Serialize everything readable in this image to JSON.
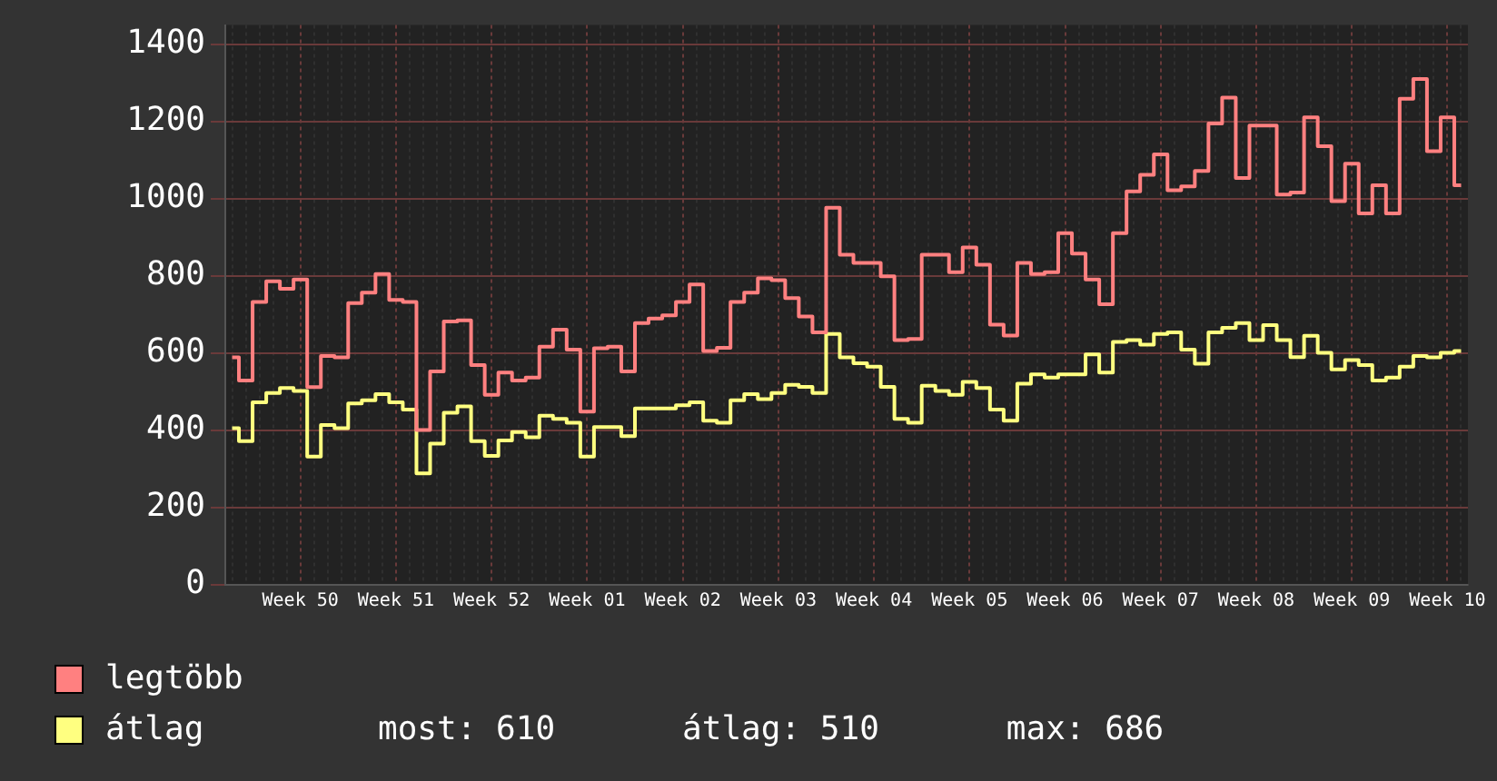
{
  "chart_data": {
    "type": "step",
    "categories": [
      null,
      null,
      null,
      null,
      null,
      "Week 50",
      null,
      null,
      null,
      null,
      null,
      null,
      "Week 51",
      null,
      null,
      null,
      null,
      null,
      null,
      "Week 52",
      null,
      null,
      null,
      null,
      null,
      null,
      "Week 01",
      null,
      null,
      null,
      null,
      null,
      null,
      "Week 02",
      null,
      null,
      null,
      null,
      null,
      null,
      "Week 03",
      null,
      null,
      null,
      null,
      null,
      null,
      "Week 04",
      null,
      null,
      null,
      null,
      null,
      null,
      "Week 05",
      null,
      null,
      null,
      null,
      null,
      null,
      "Week 06",
      null,
      null,
      null,
      null,
      null,
      null,
      "Week 07",
      null,
      null,
      null,
      null,
      null,
      null,
      "Week 08",
      null,
      null,
      null,
      null,
      null,
      null,
      "Week 09",
      null,
      null,
      null,
      null,
      null,
      null,
      "Week 10",
      null
    ],
    "series": [
      {
        "name": "legtöbb",
        "color": "#ff8080",
        "values": [
          589,
          529,
          733,
          786,
          767,
          791,
          512,
          593,
          589,
          730,
          757,
          805,
          738,
          733,
          401,
          553,
          682,
          685,
          569,
          492,
          550,
          529,
          537,
          617,
          661,
          609,
          449,
          613,
          617,
          553,
          678,
          690,
          698,
          733,
          778,
          606,
          614,
          733,
          757,
          794,
          789,
          743,
          695,
          654,
          977,
          855,
          834,
          834,
          799,
          634,
          637,
          855,
          855,
          810,
          874,
          829,
          674,
          646,
          834,
          805,
          810,
          911,
          858,
          791,
          727,
          911,
          1019,
          1062,
          1115,
          1022,
          1032,
          1072,
          1195,
          1262,
          1054,
          1190,
          1190,
          1011,
          1016,
          1211,
          1136,
          994,
          1091,
          962,
          1035,
          962,
          1259,
          1310,
          1123,
          1211,
          1035
        ]
      },
      {
        "name": "átlag",
        "color": "#ffff80",
        "values": [
          406,
          372,
          473,
          497,
          510,
          502,
          332,
          414,
          406,
          470,
          478,
          494,
          473,
          454,
          289,
          366,
          446,
          462,
          372,
          334,
          374,
          396,
          382,
          438,
          430,
          420,
          332,
          409,
          409,
          385,
          457,
          457,
          457,
          465,
          473,
          425,
          420,
          478,
          494,
          481,
          497,
          518,
          513,
          497,
          650,
          589,
          574,
          565,
          513,
          430,
          420,
          516,
          502,
          492,
          526,
          510,
          454,
          425,
          521,
          545,
          537,
          545,
          545,
          597,
          550,
          629,
          634,
          622,
          650,
          654,
          609,
          573,
          654,
          666,
          678,
          634,
          673,
          634,
          590,
          645,
          601,
          558,
          582,
          569,
          529,
          537,
          565,
          593,
          589,
          601,
          606
        ]
      }
    ],
    "ylim": [
      0,
      1450
    ],
    "yticks": [
      0,
      200,
      400,
      600,
      800,
      1000,
      1200,
      1400
    ],
    "grid": true,
    "legend": "bottom",
    "annotations": [
      "most: 610",
      "átlag: 510",
      "max: 686"
    ]
  }
}
